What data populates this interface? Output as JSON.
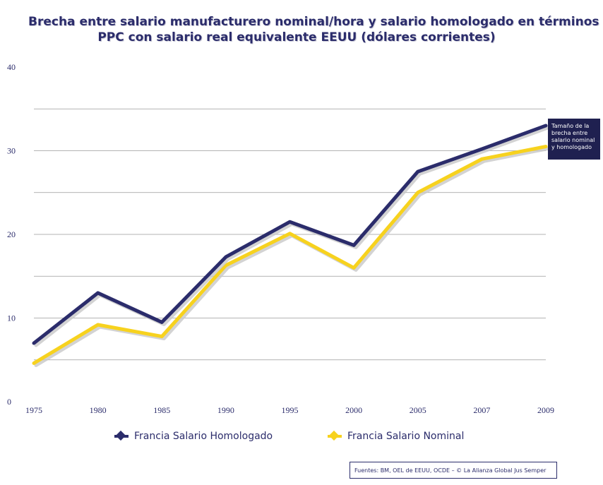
{
  "chart_data": {
    "type": "line",
    "title": "Brecha entre salario manufacturero nominal/hora y salario homologado en términos de PPC con salario real equivalente EEUU (dólares corrientes)",
    "title_lines": [
      "Brecha entre salario manufacturero nominal/hora y salario homologado en términos de",
      "PPC con salario real equivalente EEUU (dólares corrientes)"
    ],
    "categories": [
      "1975",
      "1980",
      "1985",
      "1990",
      "1995",
      "2000",
      "2005",
      "2007",
      "2009"
    ],
    "series": [
      {
        "name": "Francia Salario Homologado",
        "color": "#2b2c6b",
        "values": [
          7.0,
          13.0,
          9.5,
          17.3,
          21.5,
          18.7,
          27.5,
          30.2,
          33.0
        ]
      },
      {
        "name": "Francia Salario Nominal",
        "color": "#f7d21e",
        "values": [
          4.6,
          9.2,
          7.8,
          16.3,
          20.1,
          16.0,
          25.0,
          29.0,
          30.5
        ]
      }
    ],
    "ylim": [
      0,
      40
    ],
    "yticks": [
      "0",
      "10",
      "20",
      "30",
      "40"
    ],
    "grid": true,
    "legend_position": "bottom",
    "annotation": {
      "lines": [
        "Tamaño de la",
        "brecha entre",
        "salario nominal",
        "y homologado"
      ]
    },
    "source": "Fuentes: BM, OEL de EEUU, OCDE – © La Alianza Global Jus Semper"
  }
}
